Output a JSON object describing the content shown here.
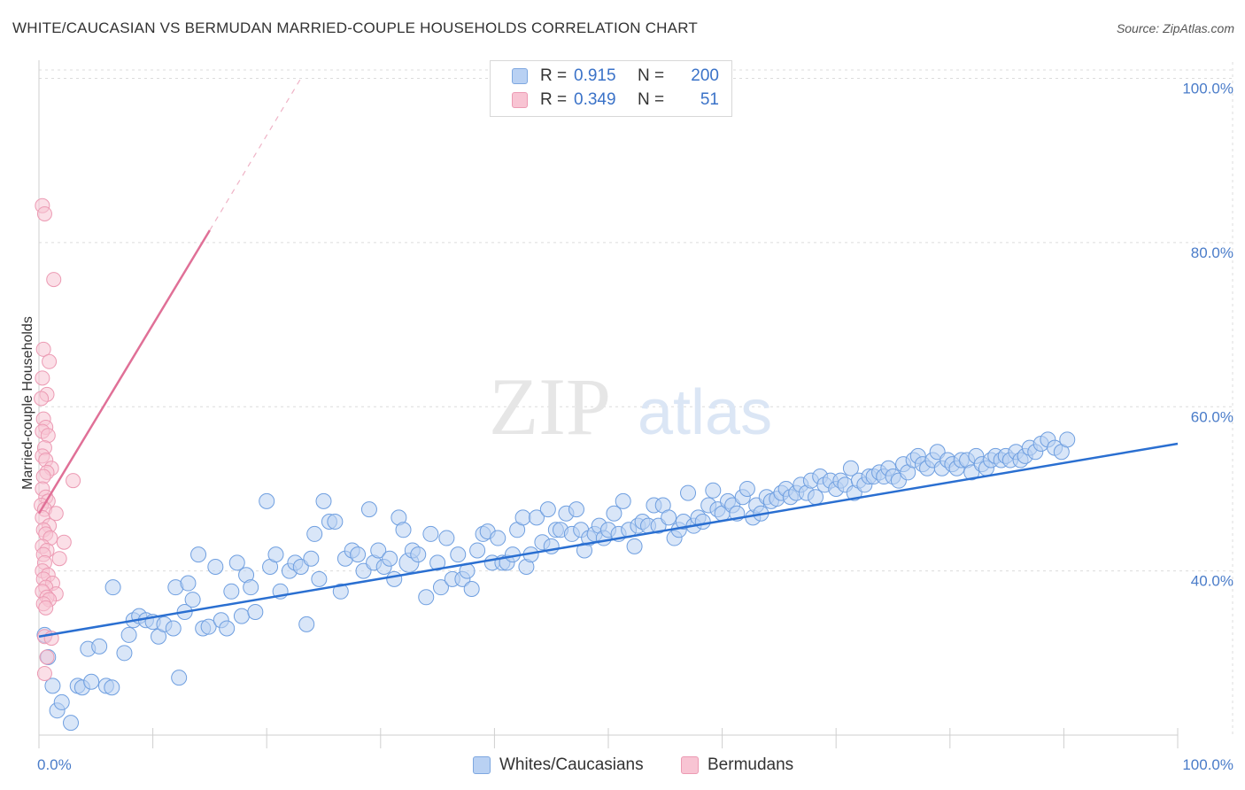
{
  "title": "WHITE/CAUCASIAN VS BERMUDAN MARRIED-COUPLE HOUSEHOLDS CORRELATION CHART",
  "source": "Source: ZipAtlas.com",
  "colors": {
    "blue_fill": "#b9d1f3",
    "blue_stroke": "#6f9fe0",
    "blue_line": "#2a6fd1",
    "pink_fill": "#f8c4d3",
    "pink_stroke": "#ec9ab3",
    "pink_line": "#e07097",
    "grid": "#dcdcdc",
    "tick_text": "#4a7cc9"
  },
  "legend": {
    "r_label": "R =",
    "n_label": "N =",
    "rows": [
      {
        "series": "Whites/Caucasians",
        "r": "0.915",
        "n": "200"
      },
      {
        "series": "Bermudans",
        "r": "0.349",
        "n": "51"
      }
    ]
  },
  "bottom_legend": [
    "Whites/Caucasians",
    "Bermudans"
  ],
  "chart_data": {
    "type": "scatter",
    "title": "WHITE/CAUCASIAN VS BERMUDAN MARRIED-COUPLE HOUSEHOLDS CORRELATION CHART",
    "xlabel": "",
    "ylabel": "Married-couple Households",
    "xlim": [
      0,
      100
    ],
    "ylim": [
      20,
      102
    ],
    "x_tick_labels": [
      "0.0%",
      "100.0%"
    ],
    "y_ticks": [
      40,
      60,
      80,
      100
    ],
    "y_tick_labels": [
      "40.0%",
      "60.0%",
      "80.0%",
      "100.0%"
    ],
    "watermark": {
      "zip": "ZIP",
      "atlas": "atlas"
    },
    "series": [
      {
        "name": "Whites/Caucasians",
        "r": 0.915,
        "n": 200,
        "trend": {
          "x0": 0,
          "y0": 32.0,
          "x1": 100,
          "y1": 55.5,
          "dashed_to": null
        },
        "points": [
          [
            0.5,
            32.2
          ],
          [
            0.8,
            29.5
          ],
          [
            1.2,
            26.0
          ],
          [
            1.6,
            23.0
          ],
          [
            2.0,
            24.0
          ],
          [
            2.8,
            21.5
          ],
          [
            3.4,
            26.0
          ],
          [
            3.8,
            25.8
          ],
          [
            4.3,
            30.5
          ],
          [
            4.6,
            26.5
          ],
          [
            5.3,
            30.8
          ],
          [
            5.9,
            26.0
          ],
          [
            6.4,
            25.8
          ],
          [
            6.5,
            38.0
          ],
          [
            7.5,
            30.0
          ],
          [
            7.9,
            32.2
          ],
          [
            8.3,
            34.0
          ],
          [
            8.8,
            34.5
          ],
          [
            9.4,
            34.0
          ],
          [
            10.0,
            33.8
          ],
          [
            10.5,
            32.0
          ],
          [
            11.0,
            33.5
          ],
          [
            11.8,
            33.0
          ],
          [
            12.0,
            38.0
          ],
          [
            12.3,
            27.0
          ],
          [
            12.8,
            35.0
          ],
          [
            13.1,
            38.5
          ],
          [
            13.5,
            36.5
          ],
          [
            14.0,
            42.0
          ],
          [
            14.4,
            33.0
          ],
          [
            14.9,
            33.2
          ],
          [
            15.5,
            40.5
          ],
          [
            16.0,
            34.0
          ],
          [
            16.5,
            33.0
          ],
          [
            16.9,
            37.5
          ],
          [
            17.4,
            41.0
          ],
          [
            17.8,
            34.5
          ],
          [
            18.2,
            39.5
          ],
          [
            18.6,
            38.0
          ],
          [
            19.0,
            35.0
          ],
          [
            20.0,
            48.5
          ],
          [
            20.3,
            40.5
          ],
          [
            20.8,
            42.0
          ],
          [
            21.2,
            37.5
          ],
          [
            22.0,
            40.0
          ],
          [
            22.5,
            41.0
          ],
          [
            23.0,
            40.5
          ],
          [
            23.5,
            33.5
          ],
          [
            23.9,
            41.5
          ],
          [
            24.2,
            44.5
          ],
          [
            24.6,
            39.0
          ],
          [
            25.0,
            48.5
          ],
          [
            25.5,
            46.0
          ],
          [
            26.0,
            46.0
          ],
          [
            26.5,
            37.5
          ],
          [
            26.9,
            41.5
          ],
          [
            27.5,
            42.5
          ],
          [
            28.0,
            42.0
          ],
          [
            28.5,
            40.0
          ],
          [
            29.0,
            47.5
          ],
          [
            29.4,
            41.0
          ],
          [
            29.8,
            42.5
          ],
          [
            30.3,
            40.5
          ],
          [
            30.8,
            41.5
          ],
          [
            31.2,
            39.0
          ],
          [
            31.6,
            46.5
          ],
          [
            32.0,
            45.0
          ],
          [
            32.5,
            41.0
          ],
          [
            32.8,
            42.5
          ],
          [
            33.3,
            42.0
          ],
          [
            34.0,
            36.8
          ],
          [
            34.4,
            44.5
          ],
          [
            35.0,
            41.0
          ],
          [
            35.3,
            38.0
          ],
          [
            35.8,
            44.0
          ],
          [
            36.3,
            39.0
          ],
          [
            36.8,
            42.0
          ],
          [
            37.2,
            39.0
          ],
          [
            37.6,
            40.0
          ],
          [
            38.0,
            37.8
          ],
          [
            38.5,
            42.5
          ],
          [
            39.0,
            44.5
          ],
          [
            39.4,
            44.8
          ],
          [
            39.8,
            41.0
          ],
          [
            40.3,
            44.0
          ],
          [
            40.7,
            41.0
          ],
          [
            41.1,
            41.0
          ],
          [
            41.6,
            42.0
          ],
          [
            42.0,
            45.0
          ],
          [
            42.5,
            46.5
          ],
          [
            42.8,
            40.5
          ],
          [
            43.2,
            42.0
          ],
          [
            43.7,
            46.5
          ],
          [
            44.2,
            43.5
          ],
          [
            44.7,
            47.5
          ],
          [
            45.0,
            43.0
          ],
          [
            45.4,
            45.0
          ],
          [
            45.8,
            45.0
          ],
          [
            46.3,
            47.0
          ],
          [
            46.8,
            44.5
          ],
          [
            47.2,
            47.5
          ],
          [
            47.6,
            45.0
          ],
          [
            47.9,
            42.5
          ],
          [
            48.3,
            44.0
          ],
          [
            48.8,
            44.5
          ],
          [
            49.2,
            45.5
          ],
          [
            49.6,
            44.0
          ],
          [
            50.0,
            45.0
          ],
          [
            50.5,
            47.0
          ],
          [
            50.9,
            44.5
          ],
          [
            51.3,
            48.5
          ],
          [
            51.8,
            45.0
          ],
          [
            52.3,
            43.0
          ],
          [
            52.6,
            45.5
          ],
          [
            53.0,
            46.0
          ],
          [
            53.5,
            45.5
          ],
          [
            54.0,
            48.0
          ],
          [
            54.4,
            45.5
          ],
          [
            54.8,
            48.0
          ],
          [
            55.3,
            46.5
          ],
          [
            55.8,
            44.0
          ],
          [
            56.2,
            45.0
          ],
          [
            56.6,
            46.0
          ],
          [
            57.0,
            49.5
          ],
          [
            57.5,
            45.5
          ],
          [
            57.9,
            46.5
          ],
          [
            58.3,
            46.0
          ],
          [
            58.8,
            48.0
          ],
          [
            59.2,
            49.8
          ],
          [
            59.6,
            47.5
          ],
          [
            60.0,
            47.0
          ],
          [
            60.5,
            48.5
          ],
          [
            60.9,
            48.0
          ],
          [
            61.3,
            47.0
          ],
          [
            61.8,
            49.0
          ],
          [
            62.2,
            50.0
          ],
          [
            62.7,
            46.5
          ],
          [
            63.0,
            48.0
          ],
          [
            63.4,
            47.0
          ],
          [
            63.9,
            49.0
          ],
          [
            64.3,
            48.5
          ],
          [
            64.8,
            48.8
          ],
          [
            65.2,
            49.5
          ],
          [
            65.6,
            50.0
          ],
          [
            66.0,
            49.0
          ],
          [
            66.5,
            49.5
          ],
          [
            66.9,
            50.5
          ],
          [
            67.4,
            49.5
          ],
          [
            67.8,
            51.0
          ],
          [
            68.2,
            49.0
          ],
          [
            68.6,
            51.5
          ],
          [
            69.0,
            50.5
          ],
          [
            69.5,
            51.0
          ],
          [
            70.0,
            50.0
          ],
          [
            70.4,
            51.0
          ],
          [
            70.8,
            50.5
          ],
          [
            71.3,
            52.5
          ],
          [
            71.6,
            49.5
          ],
          [
            72.0,
            51.0
          ],
          [
            72.5,
            50.5
          ],
          [
            72.9,
            51.5
          ],
          [
            73.3,
            51.5
          ],
          [
            73.8,
            52.0
          ],
          [
            74.2,
            51.5
          ],
          [
            74.6,
            52.5
          ],
          [
            75.0,
            51.5
          ],
          [
            75.5,
            51.0
          ],
          [
            75.9,
            53.0
          ],
          [
            76.3,
            52.0
          ],
          [
            76.8,
            53.5
          ],
          [
            77.2,
            54.0
          ],
          [
            77.6,
            53.0
          ],
          [
            78.0,
            52.5
          ],
          [
            78.5,
            53.5
          ],
          [
            78.9,
            54.5
          ],
          [
            79.3,
            52.5
          ],
          [
            79.8,
            53.5
          ],
          [
            80.2,
            53.0
          ],
          [
            80.6,
            52.5
          ],
          [
            81.0,
            53.5
          ],
          [
            81.5,
            53.5
          ],
          [
            81.9,
            52.0
          ],
          [
            82.3,
            54.0
          ],
          [
            82.8,
            53.0
          ],
          [
            83.2,
            52.5
          ],
          [
            83.6,
            53.5
          ],
          [
            84.0,
            54.0
          ],
          [
            84.5,
            53.5
          ],
          [
            84.9,
            54.0
          ],
          [
            85.3,
            53.5
          ],
          [
            85.8,
            54.5
          ],
          [
            86.2,
            53.5
          ],
          [
            86.6,
            54.0
          ],
          [
            87.0,
            55.0
          ],
          [
            87.5,
            54.5
          ],
          [
            88.0,
            55.5
          ],
          [
            88.6,
            56.0
          ],
          [
            89.2,
            55.0
          ],
          [
            89.8,
            54.5
          ],
          [
            90.3,
            56.0
          ]
        ]
      },
      {
        "name": "Bermudans",
        "r": 0.349,
        "n": 51,
        "trend": {
          "x0": 0,
          "y0": 47.0,
          "x1": 15.0,
          "y1": 81.5,
          "dashed_to": {
            "x": 23.0,
            "y": 100.0
          }
        },
        "points": [
          [
            0.3,
            84.5
          ],
          [
            0.5,
            83.5
          ],
          [
            1.3,
            75.5
          ],
          [
            0.4,
            67.0
          ],
          [
            0.9,
            65.5
          ],
          [
            0.3,
            63.5
          ],
          [
            0.7,
            61.5
          ],
          [
            0.2,
            61.0
          ],
          [
            0.4,
            58.5
          ],
          [
            0.6,
            57.5
          ],
          [
            0.3,
            57.0
          ],
          [
            0.8,
            56.5
          ],
          [
            0.5,
            55.0
          ],
          [
            0.3,
            54.0
          ],
          [
            0.6,
            53.5
          ],
          [
            1.1,
            52.5
          ],
          [
            0.7,
            52.0
          ],
          [
            0.4,
            51.5
          ],
          [
            3.0,
            51.0
          ],
          [
            0.3,
            50.0
          ],
          [
            0.6,
            49.0
          ],
          [
            0.8,
            48.5
          ],
          [
            0.2,
            48.0
          ],
          [
            0.5,
            47.5
          ],
          [
            1.5,
            47.0
          ],
          [
            0.3,
            46.5
          ],
          [
            0.9,
            45.5
          ],
          [
            0.4,
            45.0
          ],
          [
            0.6,
            44.5
          ],
          [
            1.0,
            44.0
          ],
          [
            2.2,
            43.5
          ],
          [
            0.3,
            43.0
          ],
          [
            0.7,
            42.5
          ],
          [
            0.4,
            42.0
          ],
          [
            1.8,
            41.5
          ],
          [
            0.5,
            41.0
          ],
          [
            0.3,
            40.0
          ],
          [
            0.8,
            39.5
          ],
          [
            0.4,
            39.0
          ],
          [
            1.2,
            38.5
          ],
          [
            0.6,
            38.0
          ],
          [
            0.3,
            37.5
          ],
          [
            1.5,
            37.2
          ],
          [
            0.7,
            36.8
          ],
          [
            0.9,
            36.5
          ],
          [
            0.4,
            36.0
          ],
          [
            0.6,
            35.5
          ],
          [
            0.5,
            32.0
          ],
          [
            1.1,
            31.8
          ],
          [
            0.7,
            29.5
          ],
          [
            0.5,
            27.5
          ]
        ]
      }
    ]
  }
}
